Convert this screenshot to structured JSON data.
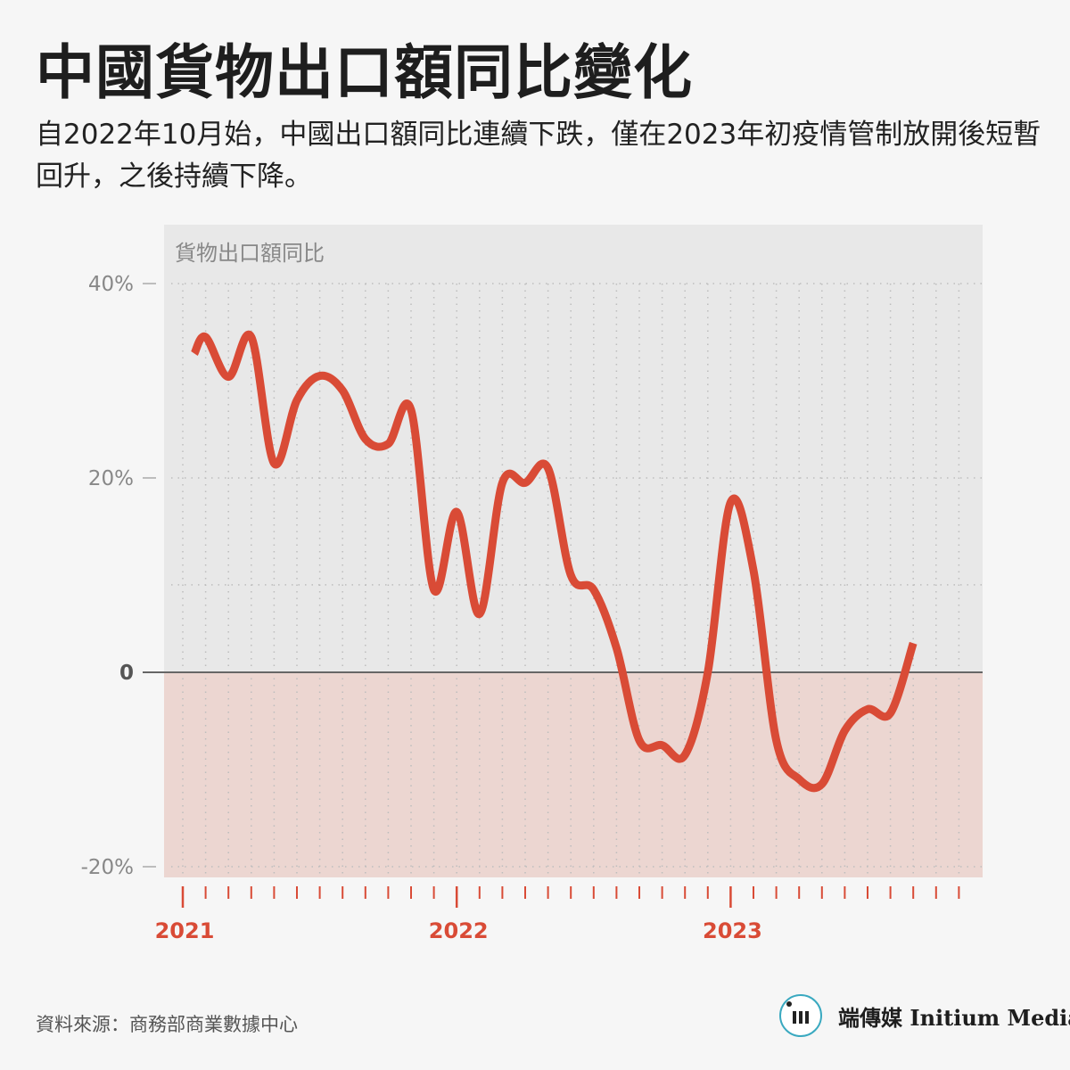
{
  "header": {
    "title": "中國貨物出口額同比變化",
    "subtitle": "自2022年10月始，中國出口額同比連續下跌，僅在2023年初疫情管制放開後短暫回升，之後持續下降。"
  },
  "footer": {
    "source": "資料來源：商務部商業數據中心",
    "brand": "端傳媒 Initium Media"
  },
  "colors": {
    "line": "#d94b36",
    "year_label": "#d94b36",
    "plot_bg": "#e8e8e8",
    "negative_bg": "#ecd6d1",
    "page_bg": "#f6f6f6",
    "logo_ring": "#3aa9c0"
  },
  "chart_data": {
    "type": "line",
    "title": "貨物出口額同比",
    "xlabel": "",
    "ylabel": "",
    "ylim": [
      -21,
      40
    ],
    "yticks": [
      {
        "value": 40,
        "label": "40%"
      },
      {
        "value": 20,
        "label": "20%"
      },
      {
        "value": 0,
        "label": "0"
      },
      {
        "value": -20,
        "label": "-20%"
      }
    ],
    "x_year_labels": [
      {
        "label": "2021",
        "month_index": 0
      },
      {
        "label": "2022",
        "month_index": 12
      },
      {
        "label": "2023",
        "month_index": 24
      }
    ],
    "grid": true,
    "values": [
      32.8,
      34.5,
      30.4,
      34.5,
      21.5,
      28.0,
      30.5,
      29.0,
      24.0,
      23.5,
      27.0,
      8.5,
      16.5,
      6.0,
      19.5,
      19.5,
      21.0,
      10.0,
      8.5,
      2.5,
      -7.0,
      -7.5,
      -8.5,
      0.0,
      17.5,
      10.5,
      -7.0,
      -11.0,
      -11.5,
      -6.0,
      -3.8,
      -4.2,
      3.0
    ]
  }
}
